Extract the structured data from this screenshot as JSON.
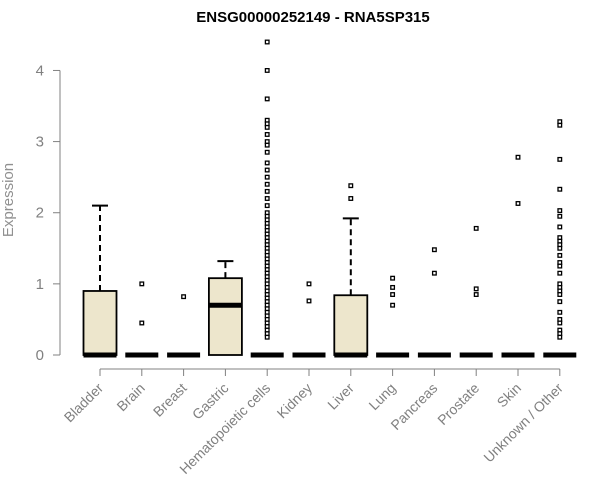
{
  "chart_data": {
    "type": "boxplot",
    "title": "ENSG00000252149 - RNA5SP315",
    "xlabel": "",
    "ylabel": "Expression",
    "ylim": [
      0,
      4.4
    ],
    "yticks": [
      0,
      1,
      2,
      3,
      4
    ],
    "colors": {
      "box_fill": "#ede6cc",
      "line": "#000000",
      "axis": "#808080"
    },
    "categories": [
      "Bladder",
      "Brain",
      "Breast",
      "Gastric",
      "Hematopoietic cells",
      "Kidney",
      "Liver",
      "Lung",
      "Pancreas",
      "Prostate",
      "Skin",
      "Unknown / Other"
    ],
    "boxes": [
      {
        "category": "Bladder",
        "q1": 0,
        "median": 0,
        "q3": 0.9,
        "whisker_low": 0,
        "whisker_high": 2.1,
        "outliers": []
      },
      {
        "category": "Brain",
        "q1": 0,
        "median": 0,
        "q3": 0,
        "whisker_low": 0,
        "whisker_high": 0,
        "outliers": [
          1.0,
          0.45
        ]
      },
      {
        "category": "Breast",
        "q1": 0,
        "median": 0,
        "q3": 0,
        "whisker_low": 0,
        "whisker_high": 0,
        "outliers": [
          0.82
        ]
      },
      {
        "category": "Gastric",
        "q1": 0,
        "median": 0.7,
        "q3": 1.08,
        "whisker_low": 0,
        "whisker_high": 1.32,
        "outliers": []
      },
      {
        "category": "Hematopoietic cells",
        "q1": 0,
        "median": 0,
        "q3": 0,
        "whisker_low": 0,
        "whisker_high": 0,
        "outliers": [
          4.4,
          4.0,
          3.6,
          3.3,
          3.25,
          3.2,
          3.1,
          3.0,
          2.95,
          2.85,
          2.7,
          2.6,
          2.5,
          2.4,
          2.3,
          2.2,
          2.1,
          2.0,
          1.95,
          1.9,
          1.85,
          1.8,
          1.75,
          1.7,
          1.65,
          1.6,
          1.55,
          1.5,
          1.45,
          1.4,
          1.35,
          1.3,
          1.25,
          1.2,
          1.15,
          1.1,
          1.05,
          1.0,
          0.95,
          0.9,
          0.85,
          0.8,
          0.75,
          0.7,
          0.65,
          0.6,
          0.55,
          0.5,
          0.45,
          0.4,
          0.35,
          0.3,
          0.25
        ]
      },
      {
        "category": "Kidney",
        "q1": 0,
        "median": 0,
        "q3": 0,
        "whisker_low": 0,
        "whisker_high": 0,
        "outliers": [
          1.0,
          0.76
        ]
      },
      {
        "category": "Liver",
        "q1": 0,
        "median": 0,
        "q3": 0.84,
        "whisker_low": 0,
        "whisker_high": 1.92,
        "outliers": [
          2.38,
          2.2
        ]
      },
      {
        "category": "Lung",
        "q1": 0,
        "median": 0,
        "q3": 0,
        "whisker_low": 0,
        "whisker_high": 0,
        "outliers": [
          1.08,
          0.95,
          0.85,
          0.7
        ]
      },
      {
        "category": "Pancreas",
        "q1": 0,
        "median": 0,
        "q3": 0,
        "whisker_low": 0,
        "whisker_high": 0,
        "outliers": [
          1.48,
          1.15
        ]
      },
      {
        "category": "Prostate",
        "q1": 0,
        "median": 0,
        "q3": 0,
        "whisker_low": 0,
        "whisker_high": 0,
        "outliers": [
          1.78,
          0.93,
          0.85
        ]
      },
      {
        "category": "Skin",
        "q1": 0,
        "median": 0,
        "q3": 0,
        "whisker_low": 0,
        "whisker_high": 0,
        "outliers": [
          2.78,
          2.13
        ]
      },
      {
        "category": "Unknown / Other",
        "q1": 0,
        "median": 0,
        "q3": 0,
        "whisker_low": 0,
        "whisker_high": 0,
        "outliers": [
          3.28,
          3.23,
          2.75,
          2.33,
          2.03,
          1.95,
          1.8,
          1.65,
          1.6,
          1.55,
          1.5,
          1.4,
          1.3,
          1.25,
          1.15,
          1.0,
          0.95,
          0.9,
          0.85,
          0.75,
          0.6,
          0.5,
          0.45,
          0.35,
          0.3,
          0.25
        ]
      }
    ]
  }
}
